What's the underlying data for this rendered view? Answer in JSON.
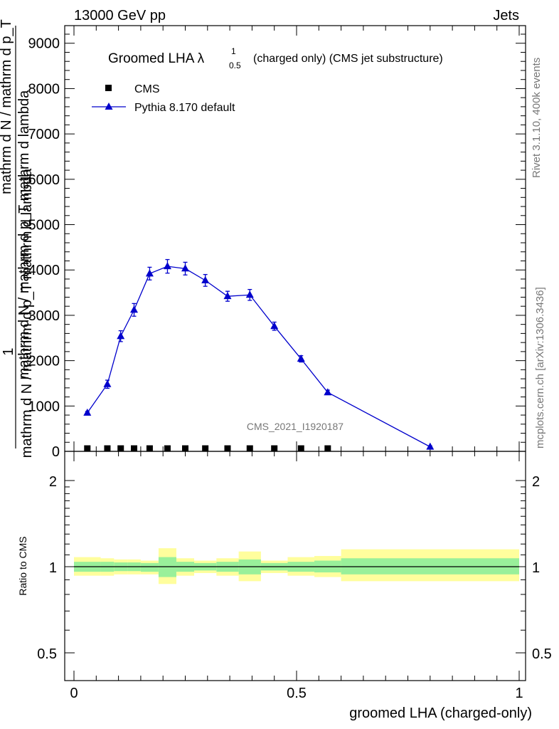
{
  "header": {
    "left": "13000 GeV pp",
    "right": "Jets"
  },
  "side_labels": {
    "rivet": "Rivet 3.1.10,  400k events",
    "mcplots": "mcplots.cern.ch [arXiv:1306.3436]"
  },
  "watermark": "CMS_2021_I1920187",
  "chart_data": [
    {
      "type": "line",
      "title": "Groomed LHA λ",
      "title_super": "1",
      "title_sub": "0.5",
      "title_suffix": "(charged only) (CMS jet substructure)",
      "ylabel_numerator": "1",
      "ylabel_overlay": [
        "mathrm d N / mathrm d p_T mathrm d lambda",
        "mathrm d N / mathrm d p_T",
        "mathrm d N / mathrm d p_T mathrm d lambda"
      ],
      "yticks": [
        "0",
        "1000",
        "2000",
        "3000",
        "4000",
        "5000",
        "6000",
        "7000",
        "8000",
        "9000"
      ],
      "ylim": [
        0,
        9200
      ],
      "xlim": [
        -0.02,
        1.0
      ],
      "legend_placement": "top-left",
      "series": [
        {
          "name": "CMS",
          "marker": "square",
          "color": "#000000",
          "x": [
            0.03,
            0.075,
            0.105,
            0.135,
            0.17,
            0.21,
            0.25,
            0.295,
            0.345,
            0.395,
            0.45,
            0.51,
            0.57
          ],
          "y": [
            0,
            0,
            0,
            0,
            0,
            0,
            0,
            0,
            0,
            0,
            0,
            0,
            0
          ]
        },
        {
          "name": "Pythia 8.170 default",
          "marker": "triangle",
          "color": "#0000cc",
          "x": [
            0.03,
            0.075,
            0.105,
            0.135,
            0.17,
            0.21,
            0.25,
            0.295,
            0.345,
            0.395,
            0.45,
            0.51,
            0.57,
            0.8
          ],
          "y": [
            850,
            1480,
            2540,
            3120,
            3920,
            4080,
            4030,
            3770,
            3420,
            3450,
            2760,
            2040,
            1300,
            100
          ],
          "yerr": [
            30,
            90,
            120,
            140,
            140,
            150,
            140,
            130,
            110,
            120,
            90,
            70,
            50,
            20
          ]
        }
      ]
    },
    {
      "type": "area",
      "ylabel": "Ratio to CMS",
      "xlabel": "groomed LHA (charged-only)",
      "xticks": [
        "0",
        "0.5",
        "1"
      ],
      "yticks": [
        "0.5",
        "1",
        "2"
      ],
      "y_scale": "log",
      "ylim": [
        0.4,
        2.3
      ],
      "reference_line": 1,
      "bands": [
        {
          "x0": 0.0,
          "x1": 0.06,
          "inner": [
            0.96,
            1.04
          ],
          "outer": [
            0.93,
            1.08
          ]
        },
        {
          "x0": 0.06,
          "x1": 0.09,
          "inner": [
            0.96,
            1.04
          ],
          "outer": [
            0.93,
            1.07
          ]
        },
        {
          "x0": 0.09,
          "x1": 0.12,
          "inner": [
            0.965,
            1.035
          ],
          "outer": [
            0.94,
            1.06
          ]
        },
        {
          "x0": 0.12,
          "x1": 0.15,
          "inner": [
            0.965,
            1.035
          ],
          "outer": [
            0.94,
            1.06
          ]
        },
        {
          "x0": 0.15,
          "x1": 0.19,
          "inner": [
            0.96,
            1.03
          ],
          "outer": [
            0.94,
            1.05
          ]
        },
        {
          "x0": 0.19,
          "x1": 0.23,
          "inner": [
            0.92,
            1.08
          ],
          "outer": [
            0.87,
            1.16
          ]
        },
        {
          "x0": 0.23,
          "x1": 0.27,
          "inner": [
            0.96,
            1.04
          ],
          "outer": [
            0.93,
            1.07
          ]
        },
        {
          "x0": 0.27,
          "x1": 0.32,
          "inner": [
            0.97,
            1.03
          ],
          "outer": [
            0.95,
            1.05
          ]
        },
        {
          "x0": 0.32,
          "x1": 0.37,
          "inner": [
            0.96,
            1.04
          ],
          "outer": [
            0.93,
            1.07
          ]
        },
        {
          "x0": 0.37,
          "x1": 0.42,
          "inner": [
            0.94,
            1.06
          ],
          "outer": [
            0.89,
            1.13
          ]
        },
        {
          "x0": 0.42,
          "x1": 0.48,
          "inner": [
            0.97,
            1.03
          ],
          "outer": [
            0.95,
            1.05
          ]
        },
        {
          "x0": 0.48,
          "x1": 0.54,
          "inner": [
            0.96,
            1.04
          ],
          "outer": [
            0.93,
            1.08
          ]
        },
        {
          "x0": 0.54,
          "x1": 0.6,
          "inner": [
            0.955,
            1.05
          ],
          "outer": [
            0.92,
            1.09
          ]
        },
        {
          "x0": 0.6,
          "x1": 1.0,
          "inner": [
            0.94,
            1.07
          ],
          "outer": [
            0.89,
            1.15
          ]
        }
      ],
      "band_colors": {
        "inner": "#99f09a",
        "outer": "#fffe9d"
      }
    }
  ]
}
